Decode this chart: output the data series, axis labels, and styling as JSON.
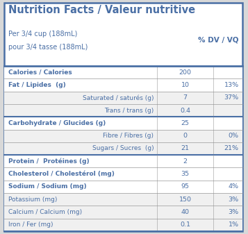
{
  "title": "Nutrition Facts / Valeur nutritive",
  "serving_line1": "Per 3/4 cup (188mL)",
  "serving_line2": "pour 3/4 tasse (188mL)",
  "dv_header": "% DV / VQ",
  "blue": "#4a6fa5",
  "light_gray": "#f0f0f0",
  "white": "#ffffff",
  "outer_bg": "#d8d8d8",
  "rows": [
    {
      "label": "Calories / Calories",
      "indent": false,
      "bold": true,
      "value": "200",
      "dv": "",
      "bg": "white",
      "top_thick": true
    },
    {
      "label": "Fat / Lipides  (g)",
      "indent": false,
      "bold": true,
      "value": "10",
      "dv": "13%",
      "bg": "white",
      "top_thick": false
    },
    {
      "label": "Saturated / saturés (g)",
      "indent": true,
      "bold": false,
      "value": "7",
      "dv": "37%",
      "bg": "gray",
      "top_thick": false
    },
    {
      "label": "Trans / trans (g)",
      "indent": true,
      "bold": false,
      "value": "0.4",
      "dv": "",
      "bg": "gray",
      "top_thick": false
    },
    {
      "label": "Carbohydrate / Glucides (g)",
      "indent": false,
      "bold": true,
      "value": "25",
      "dv": "",
      "bg": "white",
      "top_thick": true
    },
    {
      "label": "Fibre / Fibres (g)",
      "indent": true,
      "bold": false,
      "value": "0",
      "dv": "0%",
      "bg": "gray",
      "top_thick": false
    },
    {
      "label": "Sugars / Sucres  (g)",
      "indent": true,
      "bold": false,
      "value": "21",
      "dv": "21%",
      "bg": "gray",
      "top_thick": false
    },
    {
      "label": "Protein /  Protéines (g)",
      "indent": false,
      "bold": true,
      "value": "2",
      "dv": "",
      "bg": "white",
      "top_thick": true
    },
    {
      "label": "Cholesterol / Cholestérol (mg)",
      "indent": false,
      "bold": true,
      "value": "35",
      "dv": "",
      "bg": "white",
      "top_thick": false
    },
    {
      "label": "Sodium / Sodium (mg)",
      "indent": false,
      "bold": true,
      "value": "95",
      "dv": "4%",
      "bg": "white",
      "top_thick": false
    },
    {
      "label": "Potassium (mg)",
      "indent": false,
      "bold": false,
      "value": "150",
      "dv": "3%",
      "bg": "gray",
      "top_thick": false
    },
    {
      "label": "Calcium / Calcium (mg)",
      "indent": false,
      "bold": false,
      "value": "40",
      "dv": "3%",
      "bg": "gray",
      "top_thick": false
    },
    {
      "label": "Iron / Fer (mg)",
      "indent": false,
      "bold": false,
      "value": "0.1",
      "dv": "1%",
      "bg": "gray",
      "top_thick": false
    }
  ]
}
